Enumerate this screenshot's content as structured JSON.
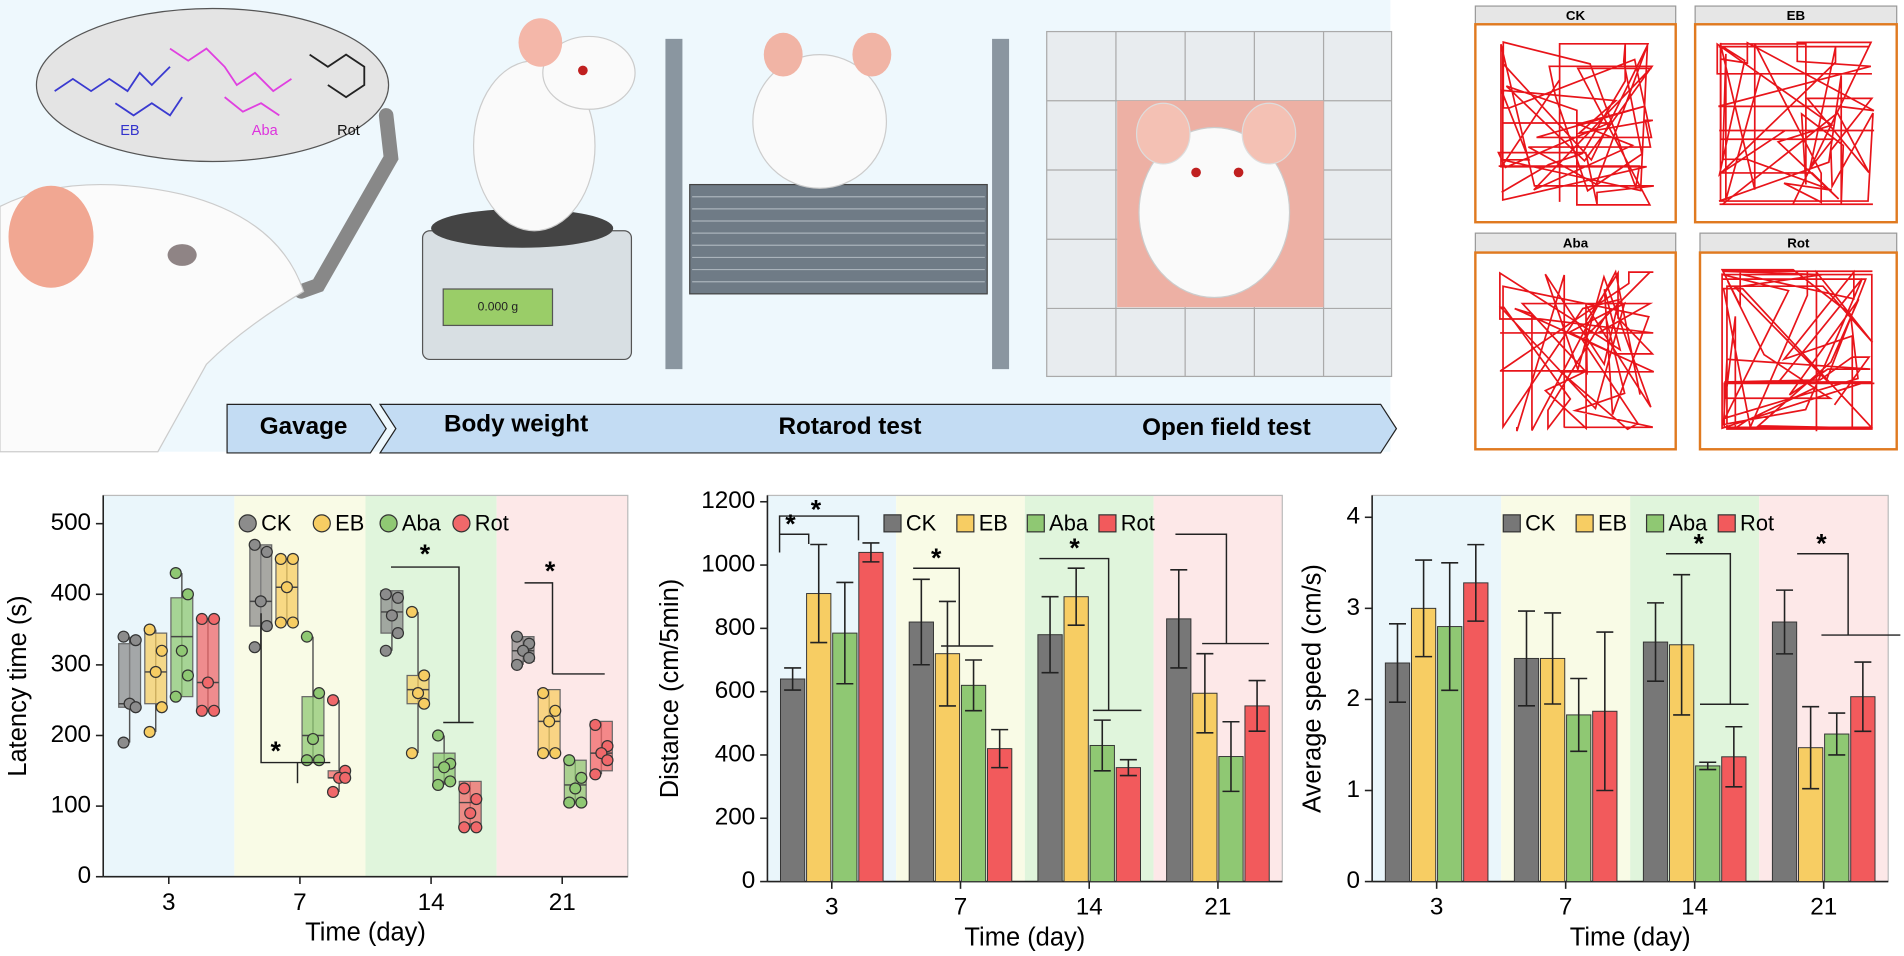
{
  "illustration": {
    "molecules": [
      "EB",
      "Aba",
      "Rot"
    ],
    "balance_display": "0.000 g",
    "timeline": [
      "Gavage",
      "Body weight",
      "Rotarod test",
      "Open field test"
    ]
  },
  "tracks": {
    "panels": [
      "CK",
      "EB",
      "Aba",
      "Rot"
    ]
  },
  "chart_data": [
    {
      "type": "box",
      "y_label": "Latency time (s)",
      "x_label": "Time (day)",
      "categories": [
        "3",
        "7",
        "14",
        "21"
      ],
      "ylim": [
        0,
        540
      ],
      "yticks": [
        0,
        100,
        200,
        300,
        400,
        500
      ],
      "annotations": [
        "*",
        "*",
        "*"
      ],
      "series": [
        {
          "name": "CK",
          "color": "#8c8c8c",
          "min": [
            190,
            325,
            320,
            300
          ],
          "q1": [
            240,
            355,
            345,
            305
          ],
          "median": [
            245,
            390,
            375,
            320
          ],
          "q3": [
            330,
            470,
            405,
            340
          ],
          "max": [
            340,
            470,
            405,
            340
          ],
          "points": [
            [
              340,
              335,
              245,
              240,
              190
            ],
            [
              470,
              460,
              390,
              355,
              325
            ],
            [
              400,
              395,
              370,
              345,
              320
            ],
            [
              340,
              330,
              320,
              310,
              300
            ]
          ]
        },
        {
          "name": "EB",
          "color": "#f7cd63",
          "min": [
            205,
            360,
            175,
            175
          ],
          "q1": [
            245,
            360,
            245,
            175
          ],
          "median": [
            290,
            410,
            265,
            220
          ],
          "q3": [
            345,
            450,
            285,
            265
          ],
          "max": [
            350,
            450,
            375,
            265
          ],
          "points": [
            [
              350,
              320,
              290,
              240,
              205
            ],
            [
              450,
              450,
              410,
              360,
              360
            ],
            [
              375,
              285,
              260,
              245,
              175
            ],
            [
              260,
              235,
              220,
              175,
              175
            ]
          ]
        },
        {
          "name": "Aba",
          "color": "#8fc873",
          "min": [
            255,
            165,
            130,
            105
          ],
          "q1": [
            255,
            165,
            135,
            105
          ],
          "median": [
            340,
            200,
            155,
            130
          ],
          "q3": [
            395,
            255,
            175,
            165
          ],
          "max": [
            430,
            340,
            200,
            165
          ],
          "points": [
            [
              430,
              400,
              320,
              285,
              255
            ],
            [
              340,
              260,
              195,
              165,
              165
            ],
            [
              200,
              160,
              155,
              135,
              130
            ],
            [
              165,
              140,
              125,
              105,
              105
            ]
          ]
        },
        {
          "name": "Rot",
          "color": "#f0686a",
          "min": [
            235,
            120,
            70,
            145
          ],
          "q1": [
            235,
            140,
            75,
            150
          ],
          "median": [
            275,
            140,
            105,
            175
          ],
          "q3": [
            365,
            150,
            135,
            220
          ],
          "max": [
            365,
            250,
            135,
            220
          ],
          "points": [
            [
              365,
              365,
              275,
              235,
              235
            ],
            [
              250,
              150,
              140,
              140,
              120
            ],
            [
              125,
              110,
              90,
              70,
              70
            ],
            [
              215,
              185,
              175,
              165,
              145
            ]
          ]
        }
      ]
    },
    {
      "type": "bar",
      "y_label": "Distance (cm/5min)",
      "x_label": "Time (day)",
      "categories": [
        "3",
        "7",
        "14",
        "21"
      ],
      "ylim": [
        0,
        1220
      ],
      "yticks": [
        0,
        200,
        400,
        600,
        800,
        1000,
        1200
      ],
      "annotations": [
        "*",
        "*",
        "*",
        "*"
      ],
      "series": [
        {
          "name": "CK",
          "color": "#777777",
          "values": [
            640,
            820,
            780,
            830
          ],
          "errors": [
            35,
            135,
            120,
            155
          ]
        },
        {
          "name": "EB",
          "color": "#f7cd63",
          "values": [
            910,
            720,
            900,
            595
          ],
          "errors": [
            155,
            165,
            90,
            125
          ]
        },
        {
          "name": "Aba",
          "color": "#8fc873",
          "values": [
            785,
            620,
            430,
            395
          ],
          "errors": [
            160,
            80,
            80,
            110
          ]
        },
        {
          "name": "Rot",
          "color": "#f25a5c",
          "values": [
            1040,
            420,
            360,
            555
          ],
          "errors": [
            30,
            60,
            25,
            80
          ]
        }
      ]
    },
    {
      "type": "bar",
      "y_label": "Average speed (cm/s)",
      "x_label": "Time (day)",
      "categories": [
        "3",
        "7",
        "14",
        "21"
      ],
      "ylim": [
        0,
        4.24
      ],
      "yticks": [
        0,
        1,
        2,
        3,
        4
      ],
      "annotations": [
        "*",
        "*"
      ],
      "series": [
        {
          "name": "CK",
          "color": "#777777",
          "values": [
            2.4,
            2.45,
            2.63,
            2.85
          ],
          "errors": [
            0.43,
            0.52,
            0.43,
            0.35
          ]
        },
        {
          "name": "EB",
          "color": "#f7cd63",
          "values": [
            3.0,
            2.45,
            2.6,
            1.47
          ],
          "errors": [
            0.53,
            0.5,
            0.77,
            0.45
          ]
        },
        {
          "name": "Aba",
          "color": "#8fc873",
          "values": [
            2.8,
            1.83,
            1.27,
            1.62
          ],
          "errors": [
            0.7,
            0.4,
            0.04,
            0.23
          ]
        },
        {
          "name": "Rot",
          "color": "#f25a5c",
          "values": [
            3.28,
            1.87,
            1.37,
            2.03
          ],
          "errors": [
            0.42,
            0.87,
            0.33,
            0.38
          ]
        }
      ]
    }
  ]
}
